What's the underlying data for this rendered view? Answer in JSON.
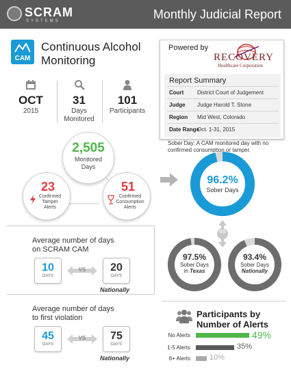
{
  "header": {
    "logo": "SCRAM",
    "logo_sub": "SYSTEMS",
    "title": "Monthly Judicial Report"
  },
  "cam": {
    "badge": "CAM",
    "title_line1": "Continuous Alcohol",
    "title_line2": "Monitoring"
  },
  "stats": [
    {
      "big": "OCT",
      "sub": "2015",
      "icon": "calendar-icon"
    },
    {
      "big": "31",
      "sub": "Days Monitored",
      "icon": "magnifier-icon"
    },
    {
      "big": "101",
      "sub": "Participants",
      "icon": "person-icon"
    }
  ],
  "report": {
    "powered_by": "Powered by",
    "company": "RECOVERY",
    "company_sub": "Healthcare Corporation",
    "summary_title": "Report Summary",
    "rows": [
      {
        "label": "Court",
        "value": "District Court of Judgement"
      },
      {
        "label": "Judge",
        "value": "Judge Harold T. Stone"
      },
      {
        "label": "Region",
        "value": "Mid West, Colorado"
      },
      {
        "label": "Date Range",
        "value": "Oct. 1-31, 2015"
      }
    ]
  },
  "monitored": {
    "value": "2,505",
    "label1": "Monitored",
    "label2": "Days"
  },
  "tamper": {
    "value": "23",
    "label1": "Confirmed",
    "label2": "Tamper",
    "label3": "Alerts"
  },
  "consumption": {
    "value": "51",
    "label1": "Confirmed",
    "label2": "Consumption",
    "label3": "Alerts"
  },
  "sober": {
    "note": "Sober Day: A CAM monitored day with no confirmed consumption or tamper.",
    "main_value": "96.2%",
    "main_label": "Sober Days",
    "main_fraction": 0.962,
    "vs": "VS",
    "texas_value": "97.5%",
    "texas_label1": "Sober Days",
    "texas_label2_prefix": "in ",
    "texas_label2_em": "Texas",
    "texas_fraction": 0.975,
    "national_value": "93.4%",
    "national_label1": "Sober Days",
    "national_label2": "Nationally",
    "national_fraction": 0.934
  },
  "avg_days_cam": {
    "title1": "Average number of days",
    "title2": "on SCRAM CAM",
    "local_value": "10",
    "local_unit": "DAYS",
    "vs": "VS",
    "national_value": "20",
    "national_unit": "DAYS",
    "national_label": "Nationally"
  },
  "avg_days_violation": {
    "title1": "Average number of days",
    "title2": "to first violation",
    "local_value": "45",
    "local_unit": "DAYS",
    "vs": "VS",
    "national_value": "75",
    "national_unit": "DAYS",
    "national_label": "Nationally"
  },
  "alerts": {
    "title1": "Participants by",
    "title2": "Number of Alerts",
    "rows": [
      {
        "label": "No Alerts",
        "value": "49%",
        "fraction": 0.49,
        "color": "#4db848"
      },
      {
        "label": "1-5 Alerts",
        "value": "35%",
        "fraction": 0.35,
        "color": "#5b5b5b"
      },
      {
        "label": "6+ Alerts",
        "value": "10%",
        "fraction": 0.1,
        "color": "#aaaaaa"
      }
    ]
  },
  "colors": {
    "brand_blue": "#1a9ad6",
    "green": "#4db848",
    "red": "#e03a3e",
    "gray": "#5b5b5b"
  }
}
